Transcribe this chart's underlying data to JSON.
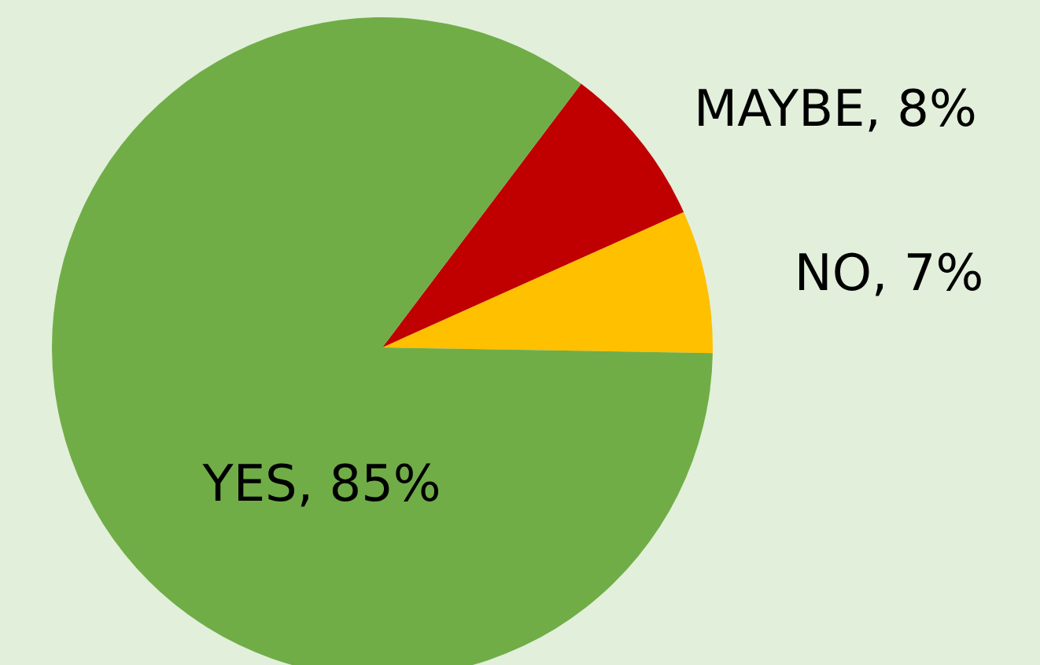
{
  "chart_data": {
    "type": "pie",
    "categories": [
      "NO",
      "MAYBE",
      "YES"
    ],
    "values": [
      7,
      8,
      85
    ],
    "value_labels": [
      "7%",
      "8%",
      "85%"
    ],
    "colors": [
      "#ffc000",
      "#c00000",
      "#70ad47"
    ]
  }
}
